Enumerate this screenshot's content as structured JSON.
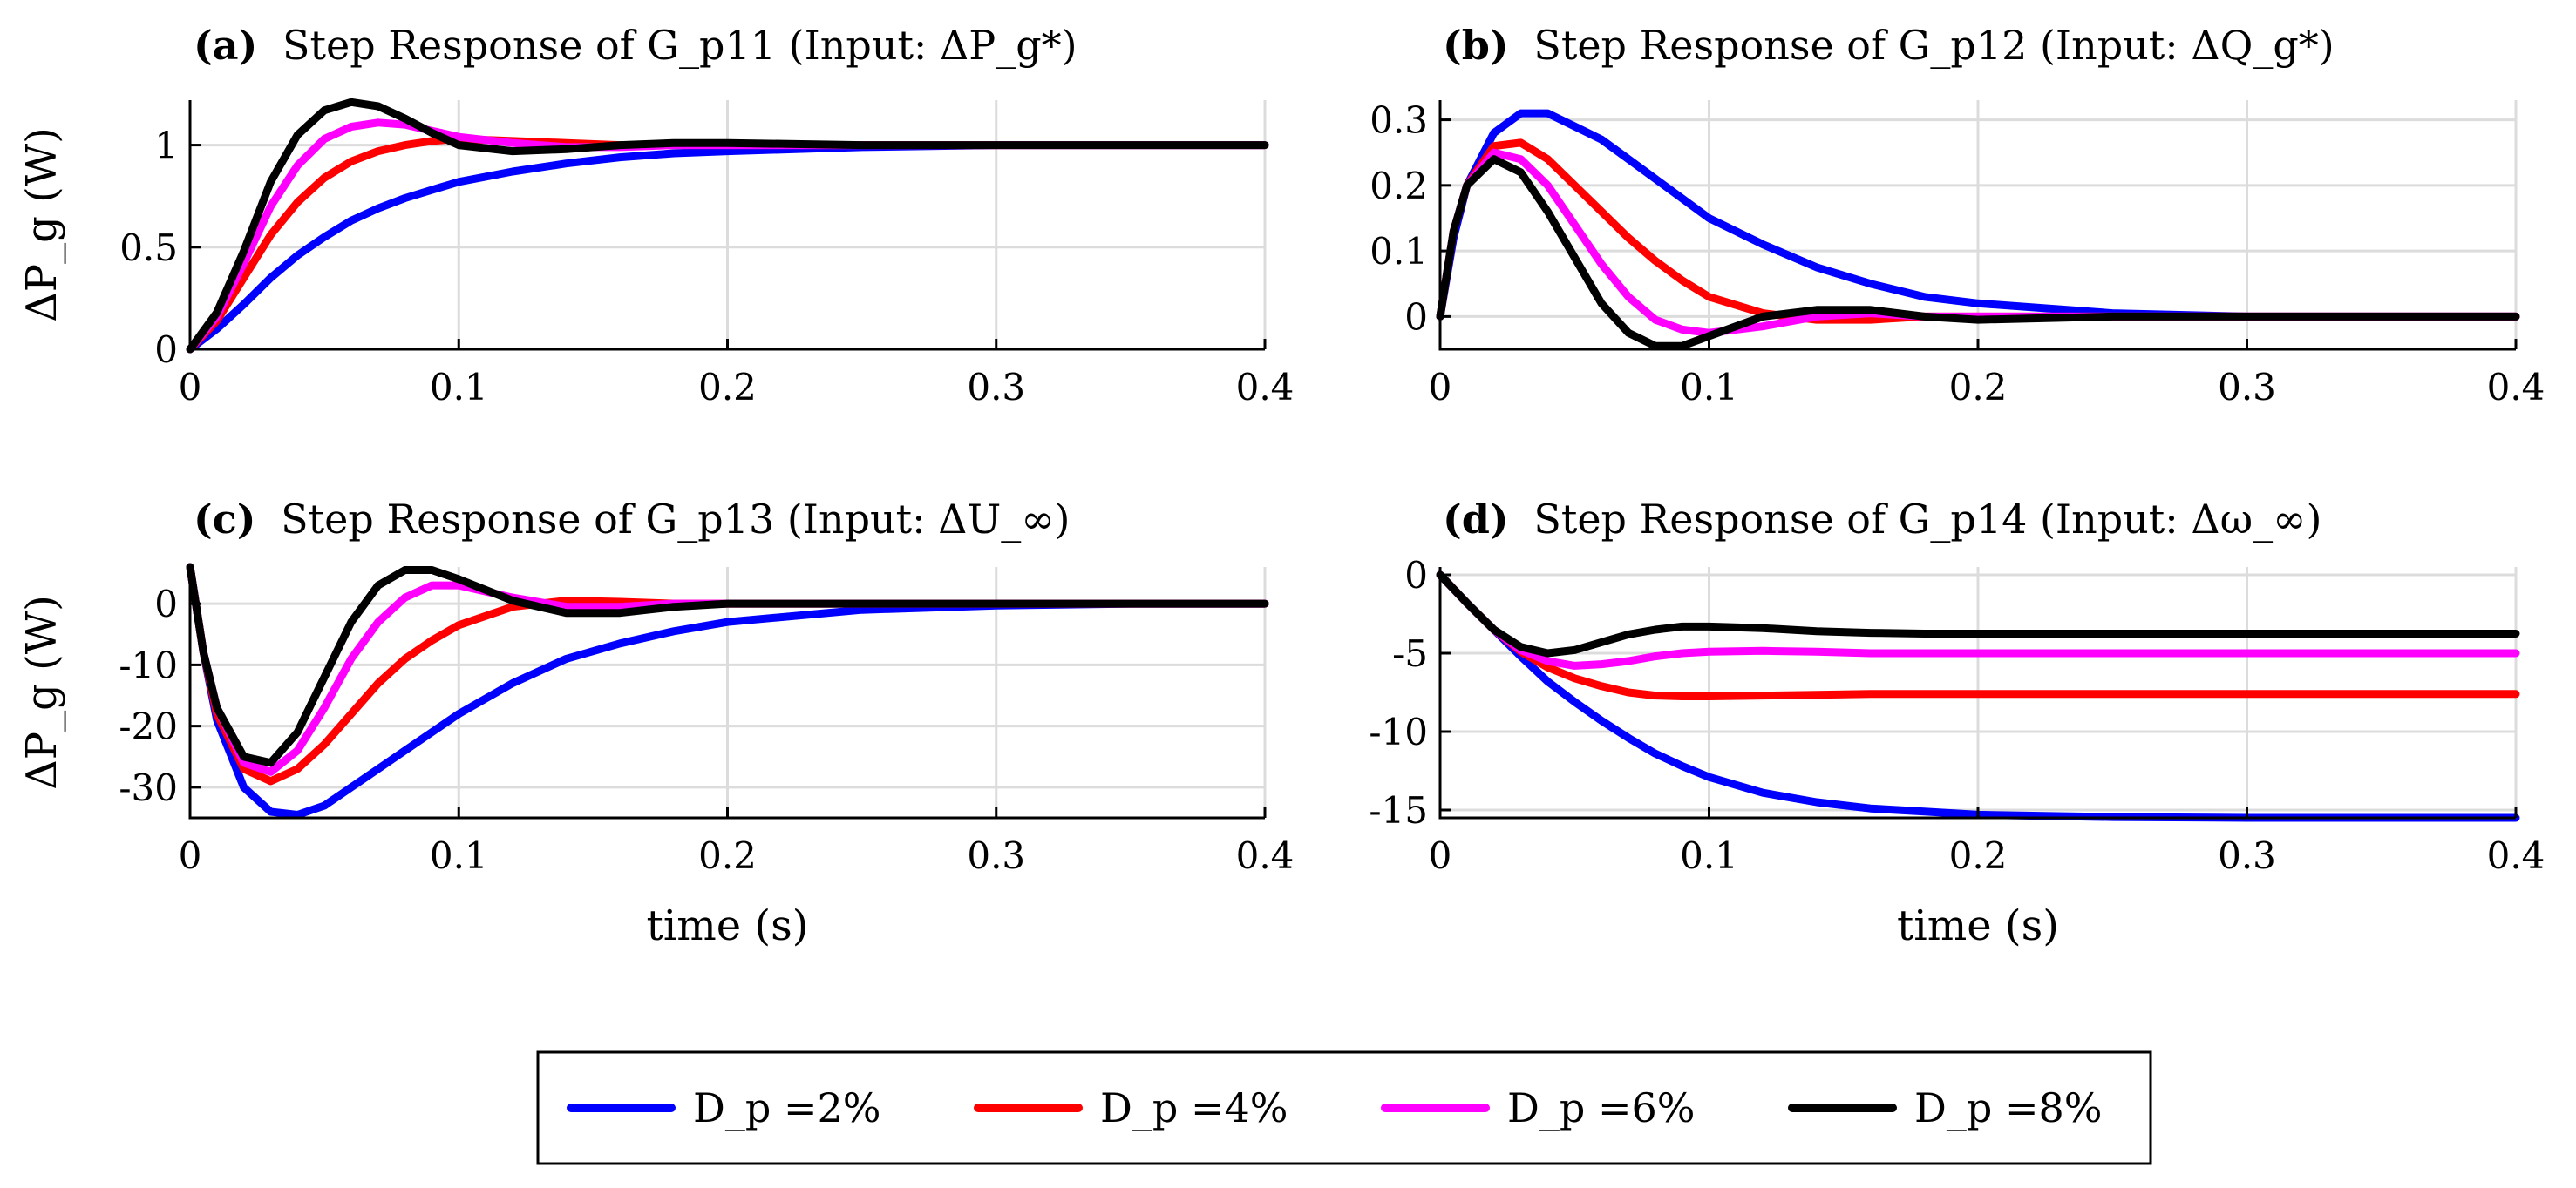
{
  "figure": {
    "ylabel_shared": "ΔP_g (W)",
    "xlabel_shared": "time (s)"
  },
  "legend": {
    "entries": [
      {
        "label": "D_p =2%",
        "color": "#0000ff"
      },
      {
        "label": "D_p =4%",
        "color": "#ff0000"
      },
      {
        "label": "D_p =6%",
        "color": "#ff00ff"
      },
      {
        "label": "D_p =8%",
        "color": "#000000"
      }
    ]
  },
  "chart_data": [
    {
      "id": "a",
      "type": "line",
      "title": {
        "tag": "(a)",
        "text": "Step Response of G_p11 (Input: ΔP_g*)"
      },
      "xlabel": "",
      "ylabel": "ΔP_g (W)",
      "xlim": [
        0,
        0.4
      ],
      "ylim": [
        0,
        1.22
      ],
      "xticks": [
        0,
        0.1,
        0.2,
        0.3,
        0.4
      ],
      "xtick_labels": [
        "0",
        "0.1",
        "0.2",
        "0.3",
        "0.4"
      ],
      "yticks": [
        0,
        0.5,
        1
      ],
      "ytick_labels": [
        "0",
        "0.5",
        "1"
      ],
      "x": [
        0,
        0.01,
        0.02,
        0.03,
        0.04,
        0.05,
        0.06,
        0.07,
        0.08,
        0.09,
        0.1,
        0.12,
        0.14,
        0.16,
        0.18,
        0.2,
        0.25,
        0.3,
        0.35,
        0.4
      ],
      "series": [
        {
          "name": "D_p =2%",
          "color": "#0000ff",
          "values": [
            0,
            0.1,
            0.22,
            0.35,
            0.46,
            0.55,
            0.63,
            0.69,
            0.74,
            0.78,
            0.82,
            0.87,
            0.91,
            0.94,
            0.96,
            0.97,
            0.99,
            1.0,
            1.0,
            1.0
          ]
        },
        {
          "name": "D_p =4%",
          "color": "#ff0000",
          "values": [
            0,
            0.14,
            0.35,
            0.56,
            0.72,
            0.84,
            0.92,
            0.97,
            1.0,
            1.02,
            1.03,
            1.02,
            1.01,
            1.0,
            1.0,
            1.0,
            1.0,
            1.0,
            1.0,
            1.0
          ]
        },
        {
          "name": "D_p =6%",
          "color": "#ff00ff",
          "values": [
            0,
            0.16,
            0.42,
            0.7,
            0.9,
            1.03,
            1.09,
            1.11,
            1.1,
            1.07,
            1.04,
            1.01,
            0.99,
            0.99,
            1.0,
            1.0,
            1.0,
            1.0,
            1.0,
            1.0
          ]
        },
        {
          "name": "D_p =8%",
          "color": "#000000",
          "values": [
            0,
            0.18,
            0.48,
            0.82,
            1.05,
            1.17,
            1.21,
            1.19,
            1.13,
            1.06,
            1.0,
            0.97,
            0.98,
            1.0,
            1.01,
            1.01,
            1.0,
            1.0,
            1.0,
            1.0
          ]
        }
      ]
    },
    {
      "id": "b",
      "type": "line",
      "title": {
        "tag": "(b)",
        "text": "Step Response of G_p12 (Input: ΔQ_g*)"
      },
      "xlabel": "",
      "ylabel": "",
      "xlim": [
        0,
        0.4
      ],
      "ylim": [
        -0.05,
        0.33
      ],
      "xticks": [
        0,
        0.1,
        0.2,
        0.3,
        0.4
      ],
      "xtick_labels": [
        "0",
        "0.1",
        "0.2",
        "0.3",
        "0.4"
      ],
      "yticks": [
        0,
        0.1,
        0.2,
        0.3
      ],
      "ytick_labels": [
        "0",
        "0.1",
        "0.2",
        "0.3"
      ],
      "x": [
        0,
        0.005,
        0.01,
        0.02,
        0.03,
        0.04,
        0.05,
        0.06,
        0.07,
        0.08,
        0.09,
        0.1,
        0.12,
        0.14,
        0.16,
        0.18,
        0.2,
        0.25,
        0.3,
        0.35,
        0.4
      ],
      "series": [
        {
          "name": "D_p =2%",
          "color": "#0000ff",
          "values": [
            0,
            0.12,
            0.2,
            0.28,
            0.31,
            0.31,
            0.29,
            0.27,
            0.24,
            0.21,
            0.18,
            0.15,
            0.11,
            0.075,
            0.05,
            0.03,
            0.02,
            0.005,
            0.0,
            0.0,
            0.0
          ]
        },
        {
          "name": "D_p =4%",
          "color": "#ff0000",
          "values": [
            0,
            0.13,
            0.2,
            0.26,
            0.265,
            0.24,
            0.2,
            0.16,
            0.12,
            0.085,
            0.055,
            0.03,
            0.005,
            -0.005,
            -0.005,
            0.0,
            0.0,
            0.0,
            0.0,
            0.0,
            0.0
          ]
        },
        {
          "name": "D_p =6%",
          "color": "#ff00ff",
          "values": [
            0,
            0.13,
            0.2,
            0.25,
            0.24,
            0.2,
            0.14,
            0.08,
            0.03,
            -0.005,
            -0.02,
            -0.025,
            -0.015,
            0.0,
            0.005,
            0.0,
            0.0,
            0.0,
            0.0,
            0.0,
            0.0
          ]
        },
        {
          "name": "D_p =8%",
          "color": "#000000",
          "values": [
            0,
            0.13,
            0.2,
            0.24,
            0.22,
            0.16,
            0.09,
            0.02,
            -0.025,
            -0.045,
            -0.045,
            -0.03,
            0.0,
            0.01,
            0.01,
            0.0,
            -0.005,
            0.0,
            0.0,
            0.0,
            0.0
          ]
        }
      ]
    },
    {
      "id": "c",
      "type": "line",
      "title": {
        "tag": "(c)",
        "text": "Step Response of G_p13 (Input: ΔU_∞)"
      },
      "xlabel": "time (s)",
      "ylabel": "ΔP_g (W)",
      "xlim": [
        0,
        0.4
      ],
      "ylim": [
        -35,
        6
      ],
      "xticks": [
        0,
        0.1,
        0.2,
        0.3,
        0.4
      ],
      "xtick_labels": [
        "0",
        "0.1",
        "0.2",
        "0.3",
        "0.4"
      ],
      "yticks": [
        -30,
        -20,
        -10,
        0
      ],
      "ytick_labels": [
        "-30",
        "-20",
        "-10",
        "0"
      ],
      "x": [
        0,
        0.005,
        0.01,
        0.02,
        0.03,
        0.04,
        0.05,
        0.06,
        0.07,
        0.08,
        0.09,
        0.1,
        0.12,
        0.14,
        0.16,
        0.18,
        0.2,
        0.25,
        0.3,
        0.35,
        0.4
      ],
      "series": [
        {
          "name": "D_p =2%",
          "color": "#0000ff",
          "values": [
            6,
            -8,
            -19,
            -30,
            -34,
            -34.5,
            -33,
            -30,
            -27,
            -24,
            -21,
            -18,
            -13,
            -9,
            -6.5,
            -4.5,
            -3,
            -1,
            -0.3,
            0,
            0
          ]
        },
        {
          "name": "D_p =4%",
          "color": "#ff0000",
          "values": [
            6,
            -8,
            -18,
            -27,
            -29,
            -27,
            -23,
            -18,
            -13,
            -9,
            -6,
            -3.5,
            -0.5,
            0.5,
            0.3,
            0,
            0,
            0,
            0,
            0,
            0
          ]
        },
        {
          "name": "D_p =6%",
          "color": "#ff00ff",
          "values": [
            6,
            -8,
            -17,
            -26,
            -27.5,
            -24,
            -17,
            -9,
            -3,
            1,
            3,
            3,
            1,
            -0.5,
            -0.5,
            0,
            0,
            0,
            0,
            0,
            0
          ]
        },
        {
          "name": "D_p =8%",
          "color": "#000000",
          "values": [
            6,
            -8,
            -17,
            -25,
            -26,
            -21,
            -12,
            -3,
            3,
            5.5,
            5.5,
            4,
            0.5,
            -1.5,
            -1.5,
            -0.5,
            0,
            0,
            0,
            0,
            0
          ]
        }
      ]
    },
    {
      "id": "d",
      "type": "line",
      "title": {
        "tag": "(d)",
        "text": "Step Response of G_p14 (Input: Δω_∞)"
      },
      "xlabel": "time (s)",
      "ylabel": "",
      "xlim": [
        0,
        0.4
      ],
      "ylim": [
        -15.5,
        0.5
      ],
      "xticks": [
        0,
        0.1,
        0.2,
        0.3,
        0.4
      ],
      "xtick_labels": [
        "0",
        "0.1",
        "0.2",
        "0.3",
        "0.4"
      ],
      "yticks": [
        -15,
        -10,
        -5,
        0
      ],
      "ytick_labels": [
        "-15",
        "-10",
        "-5",
        "0"
      ],
      "x": [
        0,
        0.01,
        0.02,
        0.03,
        0.04,
        0.05,
        0.06,
        0.07,
        0.08,
        0.09,
        0.1,
        0.12,
        0.14,
        0.16,
        0.18,
        0.2,
        0.25,
        0.3,
        0.35,
        0.4
      ],
      "series": [
        {
          "name": "D_p =2%",
          "color": "#0000ff",
          "values": [
            0,
            -1.8,
            -3.5,
            -5.2,
            -6.8,
            -8.1,
            -9.3,
            -10.4,
            -11.4,
            -12.2,
            -12.9,
            -13.9,
            -14.5,
            -14.9,
            -15.1,
            -15.3,
            -15.45,
            -15.5,
            -15.5,
            -15.5
          ]
        },
        {
          "name": "D_p =4%",
          "color": "#ff0000",
          "values": [
            0,
            -1.8,
            -3.5,
            -4.9,
            -5.9,
            -6.6,
            -7.1,
            -7.5,
            -7.7,
            -7.75,
            -7.75,
            -7.7,
            -7.65,
            -7.6,
            -7.6,
            -7.6,
            -7.6,
            -7.6,
            -7.6,
            -7.6
          ]
        },
        {
          "name": "D_p =6%",
          "color": "#ff00ff",
          "values": [
            0,
            -1.8,
            -3.5,
            -4.8,
            -5.5,
            -5.8,
            -5.7,
            -5.5,
            -5.2,
            -5.0,
            -4.9,
            -4.85,
            -4.9,
            -5.0,
            -5.0,
            -5.0,
            -5.0,
            -5.0,
            -5.0,
            -5.0
          ]
        },
        {
          "name": "D_p =8%",
          "color": "#000000",
          "values": [
            0,
            -1.8,
            -3.5,
            -4.6,
            -5.0,
            -4.8,
            -4.3,
            -3.8,
            -3.5,
            -3.3,
            -3.3,
            -3.4,
            -3.6,
            -3.7,
            -3.75,
            -3.75,
            -3.75,
            -3.75,
            -3.75,
            -3.75
          ]
        }
      ]
    }
  ]
}
